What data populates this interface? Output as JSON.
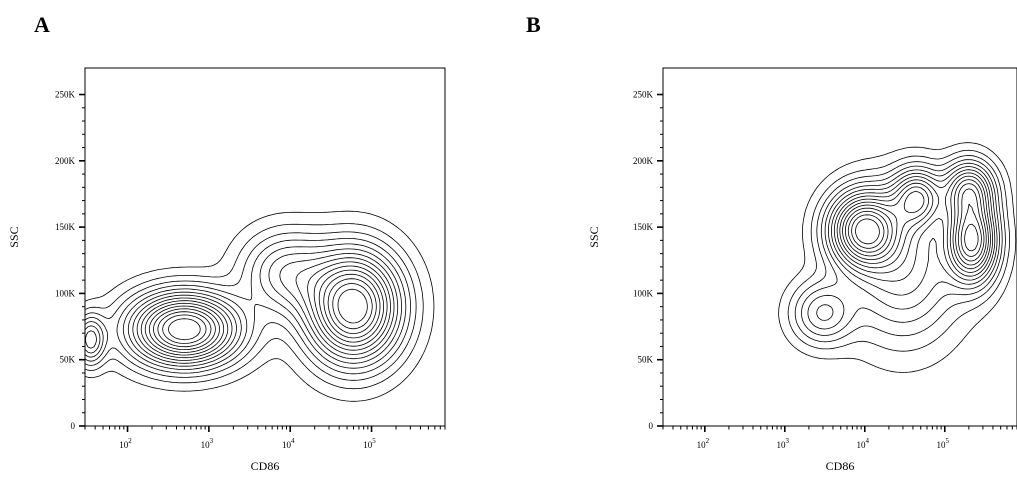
{
  "chart_data": [
    {
      "panel": "A",
      "type": "contour",
      "xlabel": "CD86",
      "ylabel": "SSC",
      "xscale": "log",
      "xlim": [
        30,
        800000
      ],
      "ylim": [
        0,
        270000
      ],
      "xticks": [
        {
          "base": "10",
          "exp": "2"
        },
        {
          "base": "10",
          "exp": "3"
        },
        {
          "base": "10",
          "exp": "4"
        },
        {
          "base": "10",
          "exp": "5"
        }
      ],
      "yticks": [
        "0",
        "50K",
        "100K",
        "150K",
        "200K",
        "250K"
      ],
      "ytick_values": [
        0,
        50000,
        100000,
        150000,
        200000,
        250000
      ],
      "populations": [
        {
          "x": 500,
          "y": 73000,
          "sx": 0.42,
          "sy": 17000,
          "w": 1.0
        },
        {
          "x": 60000,
          "y": 90000,
          "sx": 0.36,
          "sy": 26000,
          "w": 1.0
        },
        {
          "x": 9000,
          "y": 115000,
          "sx": 0.35,
          "sy": 20000,
          "w": 0.3
        },
        {
          "x": 35,
          "y": 65000,
          "sx": 0.12,
          "sy": 12000,
          "w": 0.35
        }
      ]
    },
    {
      "panel": "B",
      "type": "contour",
      "xlabel": "CD86",
      "ylabel": "SSC",
      "xscale": "log",
      "xlim": [
        30,
        800000
      ],
      "ylim": [
        0,
        270000
      ],
      "xticks": [
        {
          "base": "10",
          "exp": "2"
        },
        {
          "base": "10",
          "exp": "3"
        },
        {
          "base": "10",
          "exp": "4"
        },
        {
          "base": "10",
          "exp": "5"
        }
      ],
      "yticks": [
        "0",
        "50K",
        "100K",
        "150K",
        "200K",
        "250K"
      ],
      "ytick_values": [
        0,
        50000,
        100000,
        150000,
        200000,
        250000
      ],
      "populations": [
        {
          "x": 10000,
          "y": 148000,
          "sx": 0.28,
          "sy": 18000,
          "w": 1.0
        },
        {
          "x": 220000,
          "y": 140000,
          "sx": 0.2,
          "sy": 20000,
          "w": 0.95
        },
        {
          "x": 45000,
          "y": 172000,
          "sx": 0.2,
          "sy": 14000,
          "w": 0.6
        },
        {
          "x": 200000,
          "y": 178000,
          "sx": 0.2,
          "sy": 14000,
          "w": 0.6
        },
        {
          "x": 3000,
          "y": 85000,
          "sx": 0.25,
          "sy": 15000,
          "w": 0.3
        },
        {
          "x": 30000,
          "y": 120000,
          "sx": 0.45,
          "sy": 35000,
          "w": 0.35
        }
      ]
    }
  ],
  "labels": {
    "panel_a": "A",
    "panel_b": "B"
  }
}
